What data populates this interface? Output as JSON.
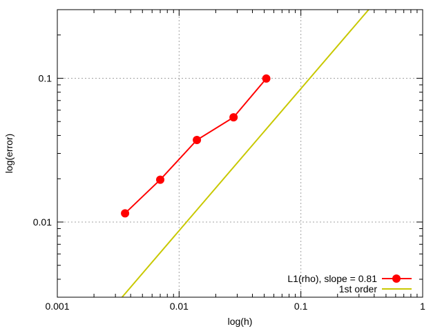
{
  "chart_data": {
    "type": "line",
    "title": "",
    "xlabel": "log(h)",
    "ylabel": "log(error)",
    "xscale": "log",
    "yscale": "log",
    "xlim": [
      0.001,
      1
    ],
    "ylim": [
      0.003,
      0.3
    ],
    "x_ticks": [
      {
        "value": 0.001,
        "label": "0.001"
      },
      {
        "value": 0.01,
        "label": "0.01"
      },
      {
        "value": 0.1,
        "label": "0.1"
      },
      {
        "value": 1,
        "label": "1"
      }
    ],
    "y_ticks": [
      {
        "value": 0.01,
        "label": "0.01"
      },
      {
        "value": 0.1,
        "label": "0.1"
      }
    ],
    "grid": true,
    "legend_position": "bottom-right",
    "series": [
      {
        "name": "L1(rho), slope = 0.81",
        "color": "#ff0000",
        "marker": "circle",
        "x": [
          0.0036,
          0.007,
          0.014,
          0.028,
          0.052
        ],
        "y": [
          0.0115,
          0.0197,
          0.0372,
          0.0535,
          0.0995
        ]
      },
      {
        "name": "1st order",
        "color": "#c8c800",
        "marker": "none",
        "x": [
          0.0034,
          0.36
        ],
        "y": [
          0.003,
          0.3
        ]
      }
    ]
  }
}
